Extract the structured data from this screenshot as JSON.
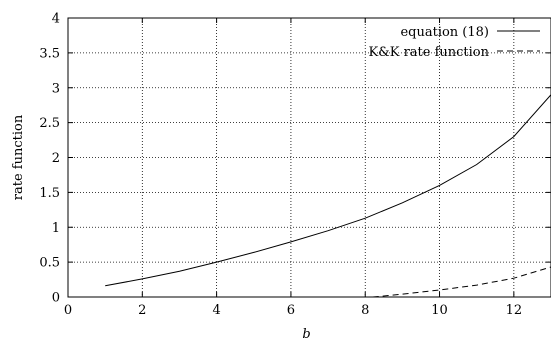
{
  "chart_data": {
    "type": "line",
    "title": "",
    "xlabel": "b",
    "ylabel": "rate function",
    "xlim": [
      0,
      13
    ],
    "ylim": [
      0,
      4
    ],
    "xticks": [
      0,
      2,
      4,
      6,
      8,
      10,
      12
    ],
    "yticks": [
      0,
      0.5,
      1,
      1.5,
      2,
      2.5,
      3,
      3.5,
      4
    ],
    "xtick_labels": [
      "0",
      "2",
      "4",
      "6",
      "8",
      "10",
      "12"
    ],
    "ytick_labels": [
      "0",
      "0.5",
      "1",
      "1.5",
      "2",
      "2.5",
      "3",
      "3.5",
      "4"
    ],
    "grid": true,
    "legend_position": "top-right",
    "series": [
      {
        "name": "equation (18)",
        "style": "solid",
        "color": "#000000",
        "x": [
          1,
          2,
          3,
          4,
          5,
          6,
          7,
          8,
          9,
          10,
          11,
          12,
          13
        ],
        "y": [
          0.16,
          0.26,
          0.37,
          0.5,
          0.64,
          0.79,
          0.95,
          1.13,
          1.35,
          1.6,
          1.9,
          2.3,
          2.9
        ]
      },
      {
        "name": "K&K rate function",
        "style": "dashed",
        "color": "#000000",
        "x": [
          8.2,
          9,
          10,
          11,
          12,
          13
        ],
        "y": [
          0.0,
          0.04,
          0.1,
          0.17,
          0.27,
          0.43
        ]
      }
    ]
  }
}
